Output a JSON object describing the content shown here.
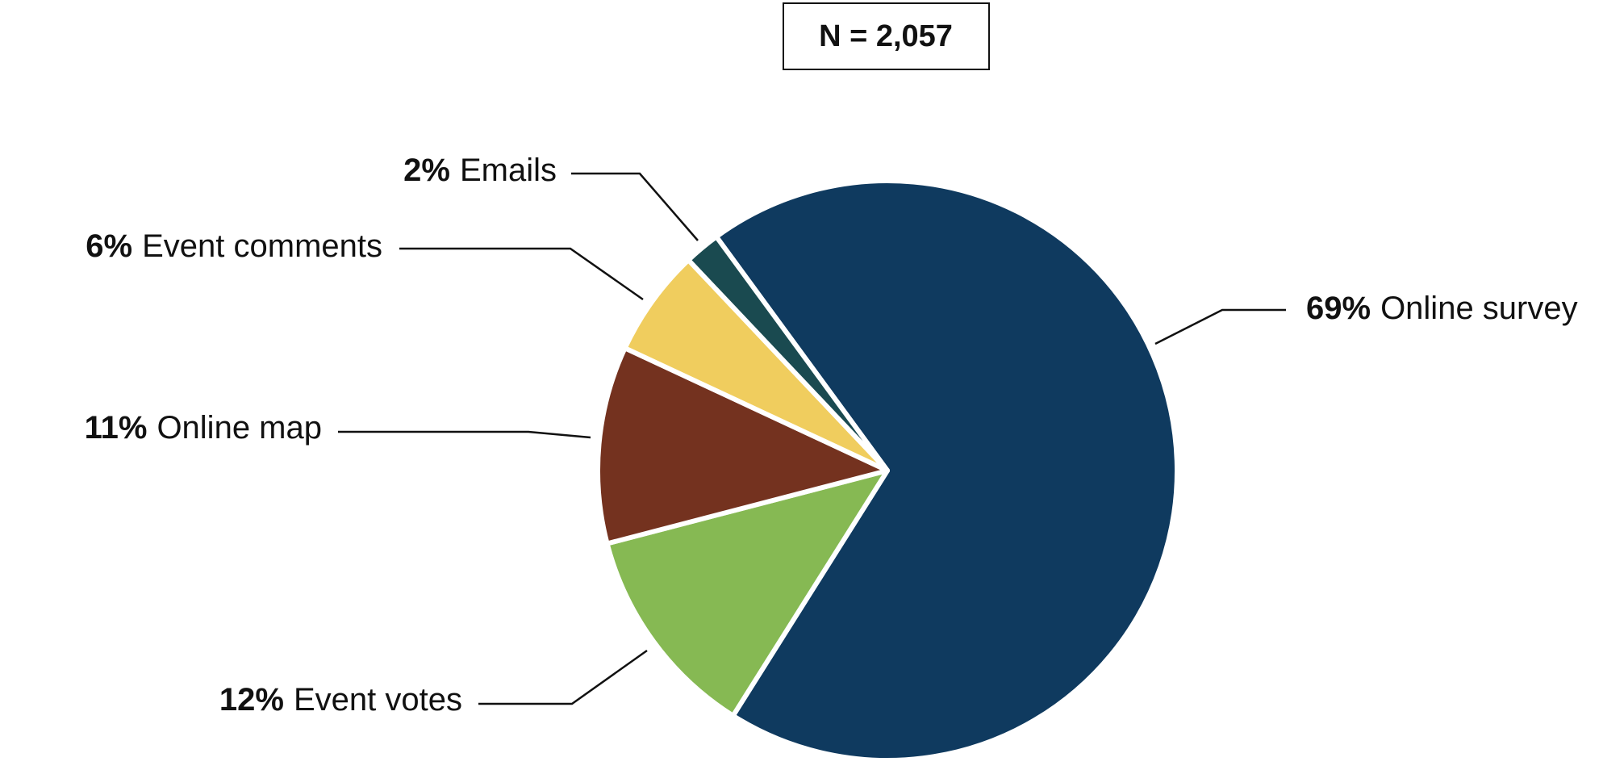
{
  "chart_data": {
    "type": "pie",
    "annotation": "N = 2,057",
    "categories": [
      "Online survey",
      "Event votes",
      "Online map",
      "Event comments",
      "Emails"
    ],
    "values": [
      69,
      12,
      11,
      6,
      2
    ],
    "value_labels": [
      "69%",
      "12%",
      "11%",
      "6%",
      "2%"
    ],
    "colors": [
      "#0f3a5f",
      "#86b953",
      "#74321f",
      "#f0cd5e",
      "#1a4a50"
    ]
  }
}
